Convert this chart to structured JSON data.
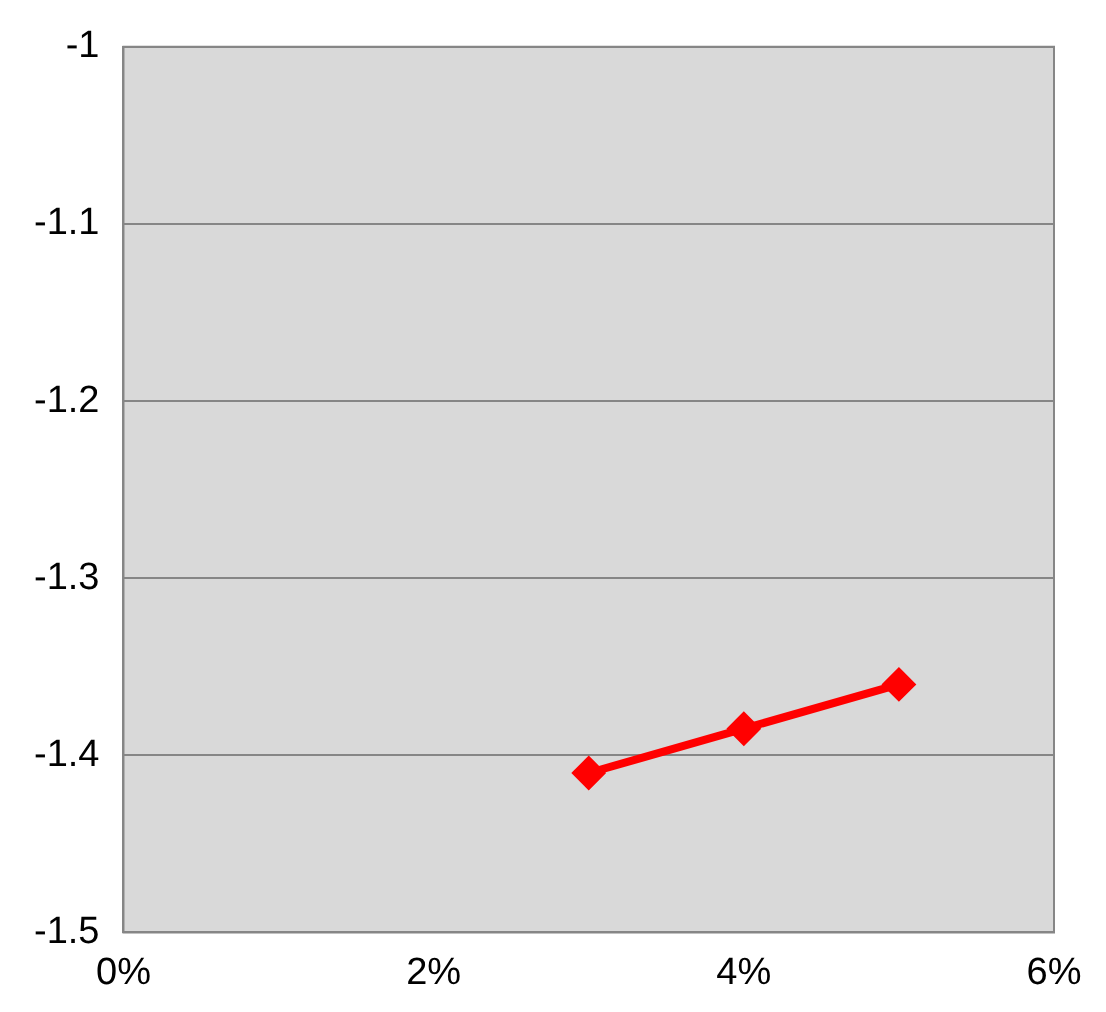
{
  "chart_data": {
    "type": "line",
    "x": [
      3,
      4,
      5
    ],
    "series": [
      {
        "color": "#ff0000",
        "values": [
          -1.41,
          -1.385,
          -1.36
        ]
      }
    ],
    "xlim": [
      0,
      6
    ],
    "xticks": [
      {
        "value": 0,
        "label": "0%"
      },
      {
        "value": 2,
        "label": "2%"
      },
      {
        "value": 4,
        "label": "4%"
      },
      {
        "value": 6,
        "label": "6%"
      }
    ],
    "ylim": [
      -1.5,
      -1
    ],
    "yticks": [
      -1.5,
      -1.4,
      -1.3,
      -1.2,
      -1.1,
      -1
    ],
    "grid": "y",
    "legend": false,
    "marker": "diamond",
    "line_style": "solid"
  }
}
